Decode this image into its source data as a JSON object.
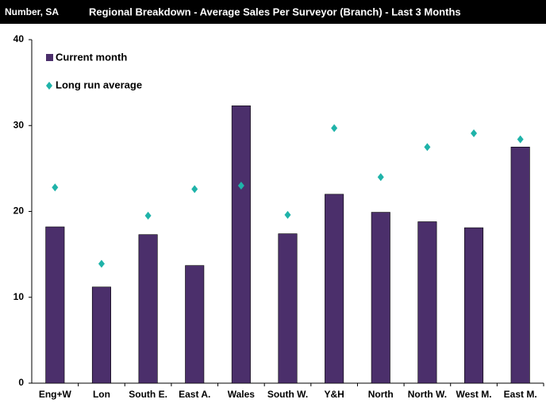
{
  "chart_data": {
    "type": "bar",
    "subtitle": "Number, SA",
    "title": "Regional Breakdown - Average Sales Per Surveyor (Branch) - Last 3 Months",
    "categories": [
      "Eng+W",
      "Lon",
      "South E.",
      "East A.",
      "Wales",
      "South W.",
      "Y&H",
      "North",
      "North W.",
      "West M.",
      "East M."
    ],
    "series": [
      {
        "name": "Current month",
        "color": "#4b2f6b",
        "mark": "bar",
        "values": [
          18.2,
          11.2,
          17.3,
          13.7,
          32.3,
          17.4,
          22.0,
          19.9,
          18.8,
          18.1,
          27.5
        ]
      },
      {
        "name": "Long run average",
        "color": "#1fb3a9",
        "mark": "diamond",
        "values": [
          22.8,
          13.9,
          19.5,
          22.6,
          23.0,
          19.6,
          29.7,
          24.0,
          27.5,
          29.1,
          28.4
        ]
      }
    ],
    "ylim": [
      0,
      40
    ],
    "yticks": [
      0,
      10,
      20,
      30,
      40
    ],
    "grid": false,
    "legend": "top-left"
  }
}
